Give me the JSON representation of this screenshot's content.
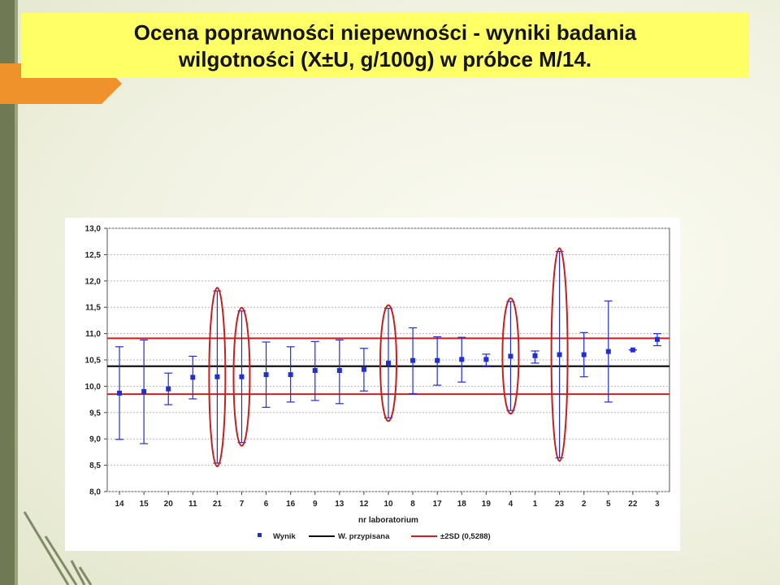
{
  "slide": {
    "title_line1": "Ocena poprawności niepewności - wyniki badania",
    "title_line2": "wilgotności (X±U, g/100g) w próbce M/14."
  },
  "colors": {
    "result": "#1f2fd1",
    "assigned": "#111111",
    "limits": "#cc1f1f",
    "highlight": "#c42020",
    "title_bg": "#ffff66",
    "accent": "#f0922c"
  },
  "chart_data": {
    "type": "scatter",
    "xlabel": "nr laboratorium",
    "ylabel": "",
    "ylim": [
      8.0,
      13.0
    ],
    "yticks": [
      "13,0",
      "12,5",
      "12,0",
      "11,5",
      "11,0",
      "10,5",
      "10,0",
      "9,5",
      "9,0",
      "8,5",
      "8,0"
    ],
    "ytick_values": [
      13.0,
      12.5,
      12.0,
      11.5,
      11.0,
      10.5,
      10.0,
      9.5,
      9.0,
      8.5,
      8.0
    ],
    "grid": true,
    "legend_position": "bottom",
    "categories": [
      "14",
      "15",
      "20",
      "11",
      "21",
      "7",
      "6",
      "16",
      "9",
      "13",
      "12",
      "10",
      "8",
      "17",
      "18",
      "19",
      "4",
      "1",
      "23",
      "2",
      "5",
      "22",
      "3"
    ],
    "series": [
      {
        "name": "Wynik",
        "values": [
          9.87,
          9.9,
          9.95,
          10.17,
          10.18,
          10.18,
          10.22,
          10.22,
          10.3,
          10.3,
          10.32,
          10.44,
          10.49,
          10.49,
          10.51,
          10.51,
          10.57,
          10.58,
          10.6,
          10.6,
          10.66,
          10.69,
          10.89
        ],
        "lower": [
          8.99,
          8.91,
          9.65,
          9.76,
          8.54,
          8.93,
          9.6,
          9.7,
          9.73,
          9.67,
          9.91,
          9.4,
          9.86,
          10.02,
          10.08,
          10.39,
          9.54,
          10.44,
          8.64,
          10.18,
          9.7,
          10.69,
          10.77
        ],
        "upper": [
          10.75,
          10.88,
          10.25,
          10.57,
          11.81,
          11.43,
          10.84,
          10.75,
          10.85,
          10.88,
          10.72,
          11.48,
          11.11,
          10.94,
          10.93,
          10.61,
          11.61,
          10.67,
          12.56,
          11.02,
          11.62,
          10.69,
          11.0
        ]
      }
    ],
    "assigned_value": {
      "name": "W. przypisana",
      "value": 10.38
    },
    "limits": {
      "name": "±2SD (0,5288)",
      "lower": 9.85,
      "upper": 10.91
    },
    "highlighted_labs": [
      "21",
      "7",
      "10",
      "4",
      "23"
    ]
  }
}
